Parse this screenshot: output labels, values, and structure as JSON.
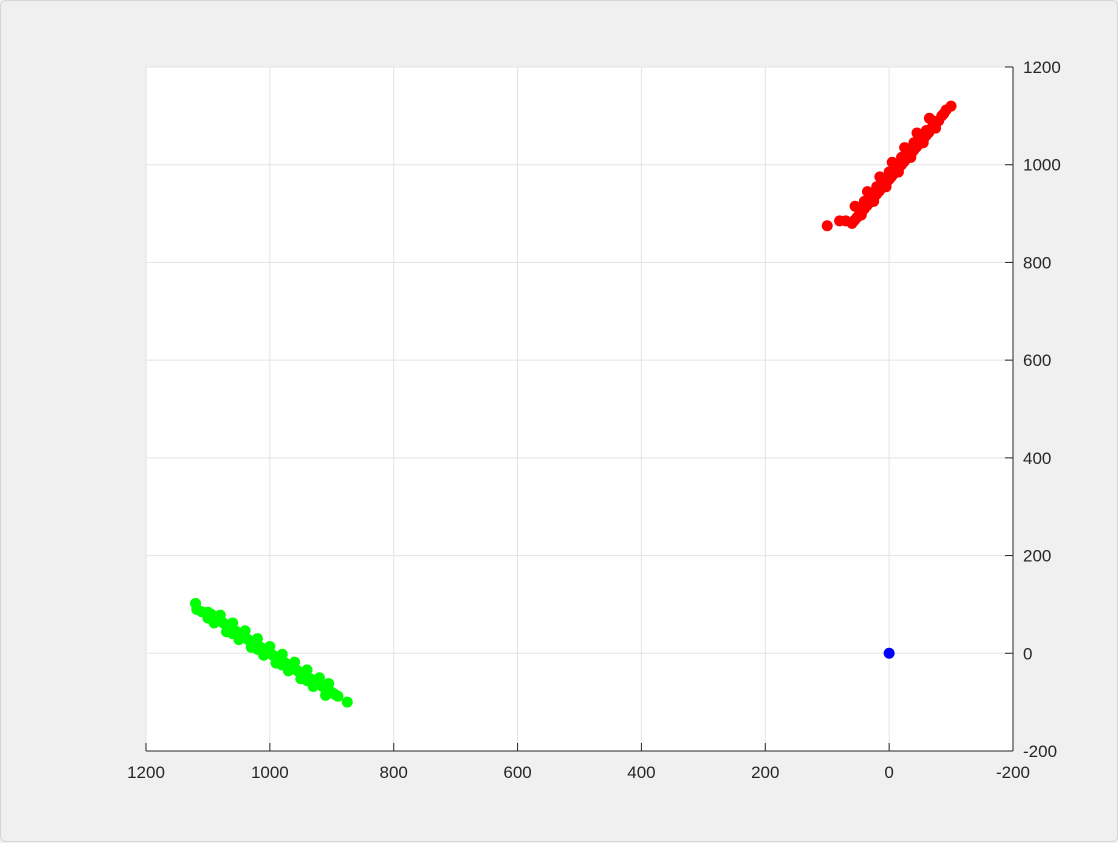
{
  "chart_data": {
    "type": "scatter",
    "title": "",
    "xlabel": "",
    "ylabel": "",
    "xlim": [
      -200,
      1200
    ],
    "ylim": [
      -200,
      1200
    ],
    "x_reversed": true,
    "y_axis_location": "right",
    "grid": true,
    "x_ticks": [
      "1200",
      "1000",
      "800",
      "600",
      "400",
      "200",
      "0",
      "-200"
    ],
    "x_tick_values": [
      1200,
      1000,
      800,
      600,
      400,
      200,
      0,
      -200
    ],
    "y_ticks": [
      "1200",
      "1000",
      "800",
      "600",
      "400",
      "200",
      "0",
      "-200"
    ],
    "y_tick_values": [
      1200,
      1000,
      800,
      600,
      400,
      200,
      0,
      -200
    ],
    "series": [
      {
        "color": "#0000ff",
        "points": [
          [
            0,
            0
          ]
        ]
      },
      {
        "color": "#ff0000",
        "points": [
          [
            -100,
            1120
          ],
          [
            -92,
            1112
          ],
          [
            -88,
            1104
          ],
          [
            -85,
            1100
          ],
          [
            -80,
            1090
          ],
          [
            -76,
            1086
          ],
          [
            -72,
            1080
          ],
          [
            -68,
            1074
          ],
          [
            -64,
            1066
          ],
          [
            -60,
            1060
          ],
          [
            -56,
            1054
          ],
          [
            -52,
            1048
          ],
          [
            -48,
            1042
          ],
          [
            -44,
            1036
          ],
          [
            -40,
            1030
          ],
          [
            -36,
            1024
          ],
          [
            -32,
            1018
          ],
          [
            -28,
            1012
          ],
          [
            -24,
            1006
          ],
          [
            -20,
            1000
          ],
          [
            -16,
            994
          ],
          [
            -12,
            988
          ],
          [
            -8,
            982
          ],
          [
            -4,
            976
          ],
          [
            0,
            970
          ],
          [
            4,
            964
          ],
          [
            8,
            958
          ],
          [
            12,
            952
          ],
          [
            16,
            946
          ],
          [
            20,
            940
          ],
          [
            24,
            934
          ],
          [
            28,
            928
          ],
          [
            32,
            922
          ],
          [
            36,
            916
          ],
          [
            40,
            910
          ],
          [
            44,
            904
          ],
          [
            48,
            898
          ],
          [
            52,
            892
          ],
          [
            56,
            886
          ],
          [
            60,
            880
          ],
          [
            100,
            875
          ],
          [
            -70,
            1090
          ],
          [
            -50,
            1060
          ],
          [
            -30,
            1030
          ],
          [
            -10,
            1000
          ],
          [
            10,
            970
          ],
          [
            30,
            940
          ],
          [
            50,
            912
          ],
          [
            -60,
            1070
          ],
          [
            -40,
            1045
          ],
          [
            -20,
            1015
          ],
          [
            0,
            985
          ],
          [
            20,
            955
          ],
          [
            40,
            925
          ],
          [
            -75,
            1075
          ],
          [
            -55,
            1045
          ],
          [
            -35,
            1015
          ],
          [
            -15,
            985
          ],
          [
            5,
            955
          ],
          [
            25,
            925
          ],
          [
            45,
            897
          ],
          [
            -65,
            1095
          ],
          [
            -45,
            1065
          ],
          [
            -25,
            1035
          ],
          [
            -5,
            1005
          ],
          [
            15,
            975
          ],
          [
            35,
            945
          ],
          [
            55,
            915
          ],
          [
            70,
            885
          ],
          [
            80,
            885
          ]
        ]
      },
      {
        "color": "#00ff00",
        "points": [
          [
            1120,
            102
          ],
          [
            1118,
            90
          ],
          [
            1110,
            85
          ],
          [
            1100,
            84
          ],
          [
            1095,
            80
          ],
          [
            1090,
            75
          ],
          [
            1085,
            70
          ],
          [
            1080,
            66
          ],
          [
            1075,
            62
          ],
          [
            1070,
            58
          ],
          [
            1065,
            54
          ],
          [
            1060,
            50
          ],
          [
            1055,
            45
          ],
          [
            1050,
            40
          ],
          [
            1045,
            36
          ],
          [
            1040,
            32
          ],
          [
            1035,
            28
          ],
          [
            1030,
            24
          ],
          [
            1025,
            20
          ],
          [
            1020,
            16
          ],
          [
            1015,
            12
          ],
          [
            1010,
            8
          ],
          [
            1005,
            4
          ],
          [
            1000,
            0
          ],
          [
            995,
            -4
          ],
          [
            990,
            -8
          ],
          [
            985,
            -12
          ],
          [
            980,
            -16
          ],
          [
            975,
            -20
          ],
          [
            970,
            -24
          ],
          [
            965,
            -28
          ],
          [
            960,
            -32
          ],
          [
            955,
            -36
          ],
          [
            950,
            -40
          ],
          [
            945,
            -44
          ],
          [
            940,
            -48
          ],
          [
            935,
            -52
          ],
          [
            930,
            -56
          ],
          [
            925,
            -60
          ],
          [
            920,
            -64
          ],
          [
            915,
            -68
          ],
          [
            910,
            -72
          ],
          [
            905,
            -76
          ],
          [
            900,
            -80
          ],
          [
            895,
            -84
          ],
          [
            890,
            -88
          ],
          [
            875,
            -100
          ],
          [
            1090,
            62
          ],
          [
            1070,
            44
          ],
          [
            1050,
            28
          ],
          [
            1030,
            12
          ],
          [
            1010,
            -4
          ],
          [
            990,
            -20
          ],
          [
            970,
            -36
          ],
          [
            950,
            -52
          ],
          [
            930,
            -68
          ],
          [
            910,
            -86
          ],
          [
            1080,
            78
          ],
          [
            1060,
            62
          ],
          [
            1040,
            46
          ],
          [
            1020,
            30
          ],
          [
            1000,
            14
          ],
          [
            980,
            -2
          ],
          [
            960,
            -18
          ],
          [
            940,
            -34
          ],
          [
            920,
            -50
          ],
          [
            905,
            -62
          ],
          [
            1100,
            72
          ],
          [
            1060,
            40
          ],
          [
            1020,
            8
          ],
          [
            980,
            -24
          ],
          [
            940,
            -56
          ]
        ]
      }
    ]
  }
}
